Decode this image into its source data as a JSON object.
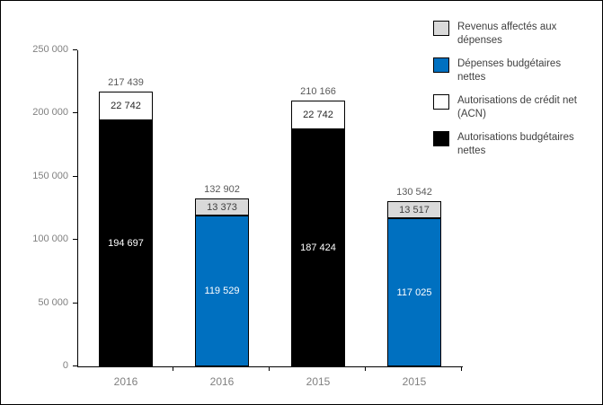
{
  "chart_data": {
    "type": "bar",
    "stacked": true,
    "title": "",
    "xlabel": "",
    "ylabel": "",
    "ylim": [
      0,
      250000
    ],
    "grid": false,
    "legend_position": "top-right",
    "yticks": [
      {
        "value": 0,
        "label": "0"
      },
      {
        "value": 50000,
        "label": "50 000"
      },
      {
        "value": 100000,
        "label": "100 000"
      },
      {
        "value": 150000,
        "label": "150 000"
      },
      {
        "value": 200000,
        "label": "200 000"
      },
      {
        "value": 250000,
        "label": "250 000"
      }
    ],
    "legend": [
      {
        "label": "Revenus affectés aux dépenses",
        "color": "#d9d9d9"
      },
      {
        "label": "Dépenses budgétaires nettes",
        "color": "#0070c0"
      },
      {
        "label": "Autorisations de crédit net (ACN)",
        "color": "#ffffff"
      },
      {
        "label": "Autorisations budgétaires nettes",
        "color": "#000000"
      }
    ],
    "bars": [
      {
        "category": "2016",
        "total": 217439,
        "total_label": "217 439",
        "segments": [
          {
            "series": "Autorisations budgétaires nettes",
            "value": 194697,
            "label": "194 697",
            "color": "#000000",
            "label_color": "#ffffff"
          },
          {
            "series": "Autorisations de crédit net (ACN)",
            "value": 22742,
            "label": "22 742",
            "color": "#ffffff",
            "label_color": "#262626"
          }
        ]
      },
      {
        "category": "2016",
        "total": 132902,
        "total_label": "132 902",
        "segments": [
          {
            "series": "Dépenses budgétaires nettes",
            "value": 119529,
            "label": "119 529",
            "color": "#0070c0",
            "label_color": "#ffffff"
          },
          {
            "series": "Revenus affectés aux dépenses",
            "value": 13373,
            "label": "13 373",
            "color": "#d9d9d9",
            "label_color": "#404040"
          }
        ]
      },
      {
        "category": "2015",
        "total": 210166,
        "total_label": "210 166",
        "segments": [
          {
            "series": "Autorisations budgétaires nettes",
            "value": 187424,
            "label": "187 424",
            "color": "#000000",
            "label_color": "#ffffff"
          },
          {
            "series": "Autorisations de crédit net (ACN)",
            "value": 22742,
            "label": "22 742",
            "color": "#ffffff",
            "label_color": "#262626"
          }
        ]
      },
      {
        "category": "2015",
        "total": 130542,
        "total_label": "130 542",
        "segments": [
          {
            "series": "Dépenses budgétaires nettes",
            "value": 117025,
            "label": "117 025",
            "color": "#0070c0",
            "label_color": "#ffffff"
          },
          {
            "series": "Revenus affectés aux dépenses",
            "value": 13517,
            "label": "13 517",
            "color": "#d9d9d9",
            "label_color": "#404040"
          }
        ]
      }
    ],
    "colors": {
      "axis": "#000000",
      "frame": "#000000",
      "background": "#ffffff",
      "tick_label": "#808080",
      "total_label": "#595959",
      "category_label": "#808080",
      "legend_text": "#404040"
    }
  }
}
